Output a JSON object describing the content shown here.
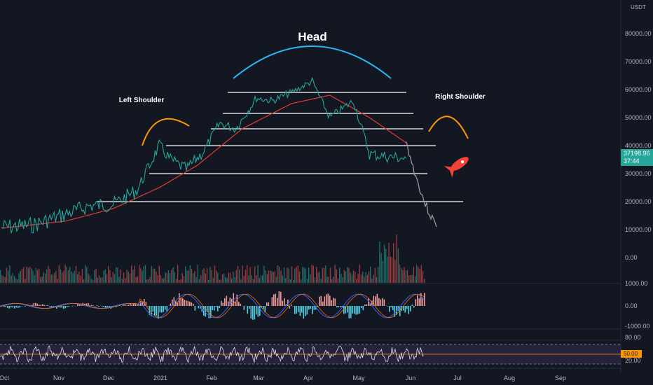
{
  "chart_data": {
    "type": "line",
    "title": "",
    "currency": "USDT",
    "price_axis": {
      "ticks": [
        "80000.00",
        "70000.00",
        "60000.00",
        "50000.00",
        "40000.00",
        "30000.00",
        "20000.00",
        "10000.00",
        "0.00"
      ],
      "ylim": [
        0,
        90000
      ]
    },
    "time_axis": {
      "ticks": [
        "Oct",
        "Nov",
        "Dec",
        "2021",
        "Feb",
        "Mar",
        "Apr",
        "May",
        "Jun",
        "Jul",
        "Aug",
        "Sep"
      ]
    },
    "last_price": "37198.96",
    "countdown": "37:44",
    "series": [
      {
        "type": "candlestick-approx",
        "x": [
          "2020-10-01",
          "2020-10-20",
          "2020-11-10",
          "2020-11-25",
          "2020-12-10",
          "2020-12-25",
          "2021-01-08",
          "2021-01-15",
          "2021-01-25",
          "2021-02-05",
          "2021-02-15",
          "2021-02-25",
          "2021-03-10",
          "2021-03-20",
          "2021-04-01",
          "2021-04-14",
          "2021-04-25",
          "2021-05-10",
          "2021-05-20",
          "2021-06-01",
          "2021-06-12"
        ],
        "values": [
          10800,
          11500,
          15500,
          18500,
          19000,
          24000,
          40000,
          35000,
          31500,
          38000,
          48000,
          46000,
          57000,
          56000,
          59000,
          63000,
          50000,
          56000,
          37000,
          36000,
          35500
        ]
      },
      {
        "type": "moving-average",
        "x": [
          "2020-10-01",
          "2020-11-10",
          "2020-12-10",
          "2021-01-08",
          "2021-02-01",
          "2021-03-01",
          "2021-04-01",
          "2021-04-25",
          "2021-05-20",
          "2021-06-12"
        ],
        "values": [
          10500,
          13000,
          17500,
          25000,
          33000,
          46000,
          55000,
          58000,
          50000,
          41000
        ]
      },
      {
        "type": "projection",
        "x": [
          "2021-06-12",
          "2021-06-18",
          "2021-06-24",
          "2021-07-01"
        ],
        "values": [
          41000,
          29000,
          19000,
          11000
        ]
      }
    ],
    "horizontal_levels": [
      59000,
      51500,
      46000,
      40000,
      30000,
      20000
    ],
    "annotations": {
      "head": "Head",
      "left_shoulder": "Left Shoulder",
      "right_shoulder": "Right Shoulder"
    },
    "macd_axis": [
      "1000.00",
      "0.00",
      "-1000.00"
    ],
    "rsi_axis": [
      "80.00",
      "50.00",
      "20.00"
    ],
    "rsi_last": "50.00"
  },
  "colors": {
    "background": "#131722",
    "price_line": "#26a69a",
    "ma_line": "#e53935",
    "level_line": "#ffffff",
    "head_arc": "#29b6f6",
    "shoulder_arc": "#ff9800",
    "projection": "#9598a1",
    "rsi_band": "#7e57c2"
  }
}
